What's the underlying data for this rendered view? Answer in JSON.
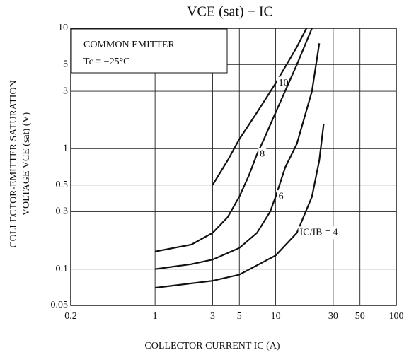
{
  "chart_data": {
    "type": "line",
    "title": "VCE (sat) − IC",
    "xlabel": "COLLECTOR CURRENT  IC  (A)",
    "ylabel": [
      "COLLECTOR-EMITTER SATURATION",
      "VOLTAGE   VCE (sat)   (V)"
    ],
    "annotations": [
      "COMMON EMITTER",
      "Tc = −25°C"
    ],
    "xscale": "log",
    "yscale": "log",
    "grid": true,
    "color": "#111111",
    "xlim": [
      0.2,
      100
    ],
    "ylim": [
      0.05,
      10
    ],
    "xticks": [
      0.2,
      1,
      3,
      5,
      10,
      30,
      50,
      100
    ],
    "yticks": [
      0.05,
      0.1,
      0.3,
      0.5,
      1,
      3,
      5,
      10
    ],
    "series": [
      {
        "name": "10",
        "x": [
          3,
          4,
          5,
          7,
          10,
          15,
          18
        ],
        "values": [
          0.5,
          0.8,
          1.2,
          2,
          3.5,
          7,
          10
        ]
      },
      {
        "name": "8",
        "x": [
          1,
          2,
          3,
          4,
          5,
          6,
          7,
          8,
          10,
          15,
          20
        ],
        "values": [
          0.14,
          0.16,
          0.2,
          0.27,
          0.4,
          0.6,
          0.9,
          1.2,
          2,
          5,
          10
        ]
      },
      {
        "name": "6",
        "x": [
          1,
          2,
          3,
          5,
          7,
          9,
          10,
          12,
          15,
          20,
          23
        ],
        "values": [
          0.1,
          0.11,
          0.12,
          0.15,
          0.2,
          0.3,
          0.4,
          0.7,
          1.1,
          3,
          7.5
        ]
      },
      {
        "name": "IC/IB = 4",
        "x": [
          1,
          3,
          5,
          10,
          15,
          20,
          23,
          25
        ],
        "values": [
          0.07,
          0.08,
          0.09,
          0.13,
          0.2,
          0.4,
          0.8,
          1.6
        ]
      }
    ]
  }
}
